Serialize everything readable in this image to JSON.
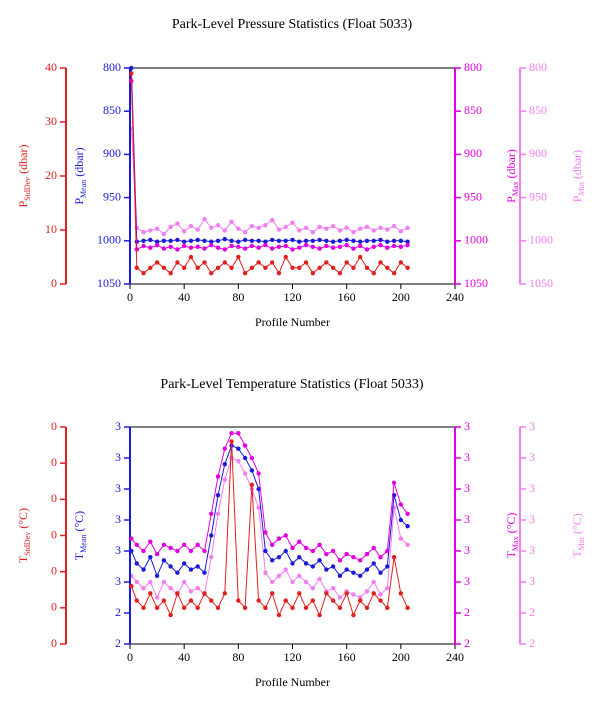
{
  "chart_data": [
    {
      "type": "line",
      "title": "Park-Level Pressure Statistics (Float 5033)",
      "xlabel": "Profile Number",
      "x": [
        1,
        5,
        10,
        15,
        20,
        25,
        30,
        35,
        40,
        45,
        50,
        55,
        60,
        65,
        70,
        75,
        80,
        85,
        90,
        95,
        100,
        105,
        110,
        115,
        120,
        125,
        130,
        135,
        140,
        145,
        150,
        155,
        160,
        165,
        170,
        175,
        180,
        185,
        190,
        195,
        200,
        205
      ],
      "xlim": [
        0,
        240
      ],
      "xticks": [
        0,
        40,
        80,
        120,
        160,
        200,
        240
      ],
      "series": [
        {
          "color": "#f27ef2",
          "axis_position": "right-outer",
          "inverted": true,
          "ylabel": {
            "symbol": "P",
            "subscript": "Min",
            "unit": "(dbar)"
          },
          "ylim": [
            800,
            1050
          ],
          "yticks": [
            800,
            850,
            900,
            950,
            1000,
            1050
          ],
          "values": [
            870,
            985,
            990,
            988,
            986,
            992,
            984,
            980,
            989,
            983,
            987,
            975,
            985,
            982,
            988,
            978,
            986,
            990,
            983,
            985,
            982,
            976,
            987,
            984,
            979,
            988,
            985,
            990,
            984,
            986,
            983,
            988,
            985,
            990,
            986,
            984,
            988,
            985,
            987,
            983,
            989,
            985
          ]
        },
        {
          "color": "#1a1adc",
          "axis_position": "left",
          "inverted": true,
          "ylabel": {
            "symbol": "P",
            "subscript": "Mean",
            "unit": "(dbar)"
          },
          "ylim": [
            800,
            1050
          ],
          "yticks": [
            800,
            850,
            900,
            950,
            1000,
            1050
          ],
          "values": [
            800,
            1001,
            1000,
            999,
            1001,
            1000,
            1000,
            999,
            1001,
            1000,
            999,
            1000,
            1001,
            1000,
            998,
            1000,
            1001,
            999,
            1000,
            1000,
            1001,
            999,
            1000,
            1000,
            999,
            1001,
            1000,
            1000,
            999,
            1000,
            1001,
            1000,
            999,
            1000,
            1001,
            1000,
            1000,
            999,
            1001,
            1000,
            1000,
            1001
          ]
        },
        {
          "color": "#e000e0",
          "axis_position": "right",
          "inverted": true,
          "ylabel": {
            "symbol": "P",
            "subscript": "Max",
            "unit": "(dbar)"
          },
          "ylim": [
            800,
            1050
          ],
          "yticks": [
            800,
            850,
            900,
            950,
            1000,
            1050
          ],
          "values": [
            815,
            1010,
            1006,
            1008,
            1005,
            1009,
            1007,
            1010,
            1006,
            1008,
            1007,
            1009,
            1005,
            1008,
            1010,
            1006,
            1007,
            1009,
            1006,
            1008,
            1005,
            1009,
            1007,
            1006,
            1010,
            1008,
            1005,
            1007,
            1009,
            1006,
            1008,
            1007,
            1005,
            1009,
            1006,
            1010,
            1007,
            1005,
            1008,
            1006,
            1007,
            1005
          ]
        },
        {
          "color": "#e0201c",
          "axis_position": "left-outer",
          "inverted": false,
          "ylabel": {
            "symbol": "P",
            "subscript": "StdDev",
            "unit": "(dbar)"
          },
          "ylim": [
            0,
            40
          ],
          "yticks": [
            0,
            10,
            20,
            30,
            40
          ],
          "values": [
            39,
            3,
            2,
            3,
            4,
            3,
            2,
            4,
            3,
            5,
            3,
            4,
            2,
            3,
            4,
            3,
            5,
            2,
            3,
            4,
            3,
            4,
            2,
            5,
            3,
            3,
            4,
            2,
            3,
            4,
            3,
            2,
            4,
            3,
            5,
            3,
            2,
            4,
            3,
            2,
            4,
            3
          ]
        }
      ]
    },
    {
      "type": "line",
      "title": "Park-Level Temperature Statistics (Float 5033)",
      "xlabel": "Profile Number",
      "x": [
        1,
        5,
        10,
        15,
        20,
        25,
        30,
        35,
        40,
        45,
        50,
        55,
        60,
        65,
        70,
        75,
        80,
        85,
        90,
        95,
        100,
        105,
        110,
        115,
        120,
        125,
        130,
        135,
        140,
        145,
        150,
        155,
        160,
        165,
        170,
        175,
        180,
        185,
        190,
        195,
        200,
        205
      ],
      "xlim": [
        0,
        240
      ],
      "xticks": [
        0,
        40,
        80,
        120,
        160,
        200,
        240
      ],
      "series": [
        {
          "color": "#f27ef2",
          "axis_position": "right-outer",
          "inverted": false,
          "ylabel": {
            "symbol": "T",
            "subscript": "Min",
            "unit": "(°C)"
          },
          "ylim": [
            2.4,
            3.1
          ],
          "yticks": [
            {
              "value": 2.4,
              "label": "2"
            },
            {
              "value": 2.5,
              "label": "2"
            },
            {
              "value": 2.6,
              "label": "3"
            },
            {
              "value": 2.7,
              "label": "3"
            },
            {
              "value": 2.8,
              "label": "3"
            },
            {
              "value": 2.9,
              "label": "3"
            },
            {
              "value": 3.0,
              "label": "3"
            },
            {
              "value": 3.1,
              "label": "3"
            }
          ],
          "values": [
            2.62,
            2.6,
            2.58,
            2.6,
            2.55,
            2.6,
            2.58,
            2.56,
            2.6,
            2.57,
            2.58,
            2.56,
            2.68,
            2.82,
            2.93,
            3.0,
            2.99,
            2.95,
            2.9,
            2.84,
            2.63,
            2.6,
            2.62,
            2.64,
            2.6,
            2.62,
            2.6,
            2.58,
            2.61,
            2.57,
            2.58,
            2.55,
            2.57,
            2.56,
            2.55,
            2.57,
            2.6,
            2.56,
            2.58,
            2.84,
            2.74,
            2.72
          ]
        },
        {
          "color": "#1a1adc",
          "axis_position": "left",
          "inverted": false,
          "ylabel": {
            "symbol": "T",
            "subscript": "Mean",
            "unit": "(°C)"
          },
          "ylim": [
            2.4,
            3.1
          ],
          "yticks": [
            {
              "value": 2.4,
              "label": "2"
            },
            {
              "value": 2.5,
              "label": "2"
            },
            {
              "value": 2.6,
              "label": "3"
            },
            {
              "value": 2.7,
              "label": "3"
            },
            {
              "value": 2.8,
              "label": "3"
            },
            {
              "value": 2.9,
              "label": "3"
            },
            {
              "value": 3.0,
              "label": "3"
            },
            {
              "value": 3.1,
              "label": "3"
            }
          ],
          "values": [
            2.7,
            2.66,
            2.64,
            2.68,
            2.62,
            2.67,
            2.65,
            2.63,
            2.66,
            2.64,
            2.65,
            2.63,
            2.75,
            2.88,
            2.98,
            3.04,
            3.03,
            3.0,
            2.96,
            2.9,
            2.7,
            2.67,
            2.68,
            2.7,
            2.66,
            2.68,
            2.66,
            2.65,
            2.67,
            2.64,
            2.65,
            2.62,
            2.64,
            2.63,
            2.62,
            2.64,
            2.66,
            2.63,
            2.65,
            2.88,
            2.8,
            2.78
          ]
        },
        {
          "color": "#e000e0",
          "axis_position": "right",
          "inverted": false,
          "ylabel": {
            "symbol": "T",
            "subscript": "Max",
            "unit": "(°C)"
          },
          "ylim": [
            2.4,
            3.1
          ],
          "yticks": [
            {
              "value": 2.4,
              "label": "2"
            },
            {
              "value": 2.5,
              "label": "2"
            },
            {
              "value": 2.6,
              "label": "3"
            },
            {
              "value": 2.7,
              "label": "3"
            },
            {
              "value": 2.8,
              "label": "3"
            },
            {
              "value": 2.9,
              "label": "3"
            },
            {
              "value": 3.0,
              "label": "3"
            },
            {
              "value": 3.1,
              "label": "3"
            }
          ],
          "values": [
            2.74,
            2.72,
            2.7,
            2.73,
            2.69,
            2.72,
            2.71,
            2.7,
            2.72,
            2.7,
            2.72,
            2.7,
            2.82,
            2.94,
            3.03,
            3.08,
            3.08,
            3.04,
            3.0,
            2.95,
            2.76,
            2.72,
            2.74,
            2.75,
            2.71,
            2.73,
            2.71,
            2.7,
            2.72,
            2.69,
            2.7,
            2.67,
            2.69,
            2.68,
            2.67,
            2.69,
            2.71,
            2.68,
            2.7,
            2.92,
            2.85,
            2.82
          ]
        },
        {
          "color": "#e0201c",
          "axis_position": "left-outer",
          "inverted": false,
          "ylabel": {
            "symbol": "T",
            "subscript": "StdDev",
            "unit": "(°C)"
          },
          "ylim": [
            0,
            0.3
          ],
          "yticks": [
            0,
            {
              "value": 0.05,
              "label": "0"
            },
            {
              "value": 0.1,
              "label": "0"
            },
            {
              "value": 0.15,
              "label": "0"
            },
            {
              "value": 0.2,
              "label": "0"
            },
            {
              "value": 0.25,
              "label": "0"
            },
            {
              "value": 0.3,
              "label": "0"
            }
          ],
          "values": [
            0.08,
            0.06,
            0.05,
            0.07,
            0.05,
            0.06,
            0.04,
            0.07,
            0.05,
            0.06,
            0.05,
            0.07,
            0.06,
            0.05,
            0.07,
            0.28,
            0.06,
            0.05,
            0.22,
            0.06,
            0.05,
            0.07,
            0.04,
            0.06,
            0.05,
            0.07,
            0.05,
            0.06,
            0.04,
            0.07,
            0.06,
            0.05,
            0.07,
            0.04,
            0.06,
            0.05,
            0.07,
            0.06,
            0.05,
            0.12,
            0.07,
            0.05
          ]
        }
      ]
    }
  ]
}
